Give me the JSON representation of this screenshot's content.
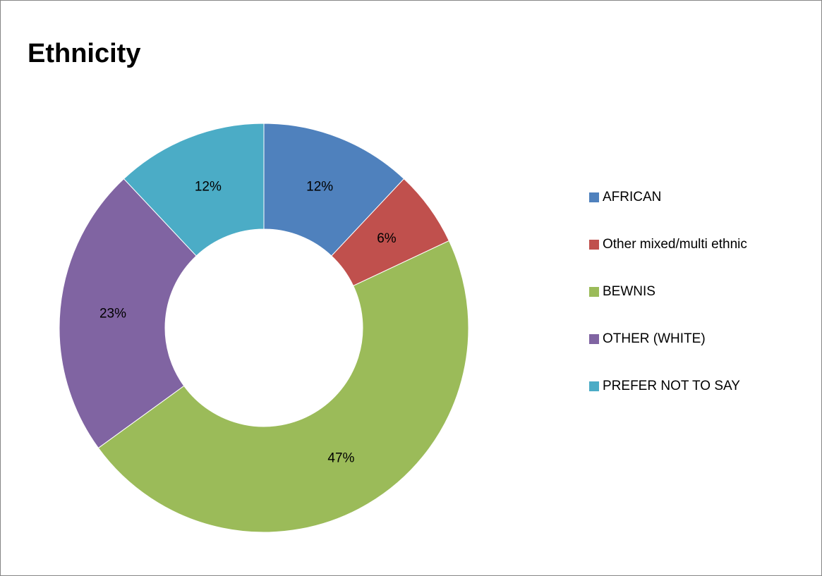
{
  "chart_data": {
    "type": "pie",
    "variant": "doughnut",
    "title": "Ethnicity",
    "legend_position": "right",
    "categories": [
      "AFRICAN",
      "Other mixed/multi ethnic",
      "BEWNIS",
      "OTHER (WHITE)",
      "PREFER NOT TO SAY"
    ],
    "values": [
      12,
      6,
      47,
      23,
      12
    ],
    "labels": [
      "12%",
      "6%",
      "47%",
      "23%",
      "12%"
    ],
    "unit": "%",
    "colors": [
      "#4f81bd",
      "#c0504d",
      "#9bbb59",
      "#8064a2",
      "#4bacc6"
    ]
  }
}
